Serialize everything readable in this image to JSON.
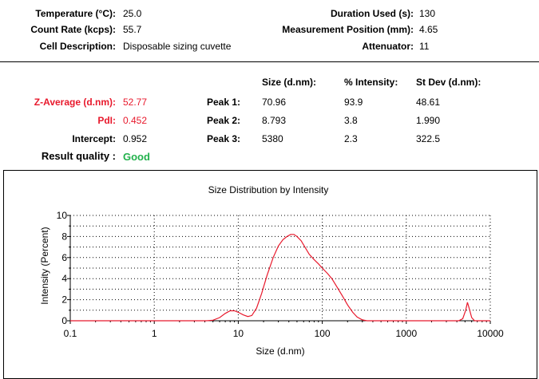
{
  "header": {
    "temperature": {
      "label": "Temperature (°C):",
      "value": "25.0"
    },
    "count_rate": {
      "label": "Count Rate (kcps):",
      "value": "55.7"
    },
    "cell_description": {
      "label": "Cell Description:",
      "value": "Disposable sizing cuvette"
    },
    "duration_used": {
      "label": "Duration Used (s):",
      "value": "130"
    },
    "measurement_position": {
      "label": "Measurement Position (mm):",
      "value": "4.65"
    },
    "attenuator": {
      "label": "Attenuator:",
      "value": "11"
    }
  },
  "results": {
    "z_average": {
      "label": "Z-Average (d.nm):",
      "value": "52.77"
    },
    "pdi": {
      "label": "PdI:",
      "value": "0.452"
    },
    "intercept": {
      "label": "Intercept:",
      "value": "0.952"
    },
    "result_quality": {
      "label": "Result quality :",
      "value": "Good"
    },
    "columns": {
      "size": "Size (d.nm):",
      "intensity": "% Intensity:",
      "stdev": "St Dev (d.nm):"
    },
    "peaks": [
      {
        "label": "Peak 1:",
        "size": "70.96",
        "intensity": "93.9",
        "stdev": "48.61"
      },
      {
        "label": "Peak 2:",
        "size": "8.793",
        "intensity": "3.8",
        "stdev": "1.990"
      },
      {
        "label": "Peak 3:",
        "size": "5380",
        "intensity": "2.3",
        "stdev": "322.5"
      }
    ]
  },
  "colors": {
    "alert": "#e8192c",
    "good": "#22b14c",
    "series": "#e8192c"
  },
  "chart_data": {
    "type": "line",
    "title": "Size Distribution by Intensity",
    "xlabel": "Size (d.nm)",
    "ylabel": "Intensity (Percent)",
    "xscale": "log",
    "xlim": [
      0.1,
      10000
    ],
    "ylim": [
      0,
      10
    ],
    "grid": true,
    "x_ticks": [
      "0.1",
      "1",
      "10",
      "100",
      "1000",
      "10000"
    ],
    "y_ticks": [
      "0",
      "2",
      "4",
      "6",
      "8",
      "10"
    ],
    "series": [
      {
        "x": [
          4.2,
          5.0,
          6.0,
          7.0,
          8.0,
          9.0,
          10.0,
          11.5,
          13.0,
          14.5,
          16.5,
          19.0,
          22.0,
          26.0,
          30.0,
          34.0,
          38.0,
          42.0,
          46.0,
          50.0,
          56.0,
          62.0,
          70.0,
          80.0,
          90.0,
          100.0,
          115.0,
          130.0,
          150.0,
          175.0,
          200.0,
          230.0,
          260.0,
          300.0,
          340.0,
          4200,
          4700,
          5100,
          5350,
          5600,
          6000,
          6500
        ],
        "y": [
          0,
          0.05,
          0.3,
          0.7,
          0.95,
          0.95,
          0.8,
          0.55,
          0.4,
          0.5,
          1.2,
          2.6,
          4.3,
          6.0,
          7.1,
          7.7,
          8.0,
          8.2,
          8.2,
          8.0,
          7.6,
          7.0,
          6.3,
          5.8,
          5.4,
          5.0,
          4.5,
          4.0,
          3.2,
          2.3,
          1.5,
          0.8,
          0.35,
          0.08,
          0,
          0,
          0.2,
          1.0,
          1.75,
          1.2,
          0.3,
          0
        ]
      }
    ]
  }
}
